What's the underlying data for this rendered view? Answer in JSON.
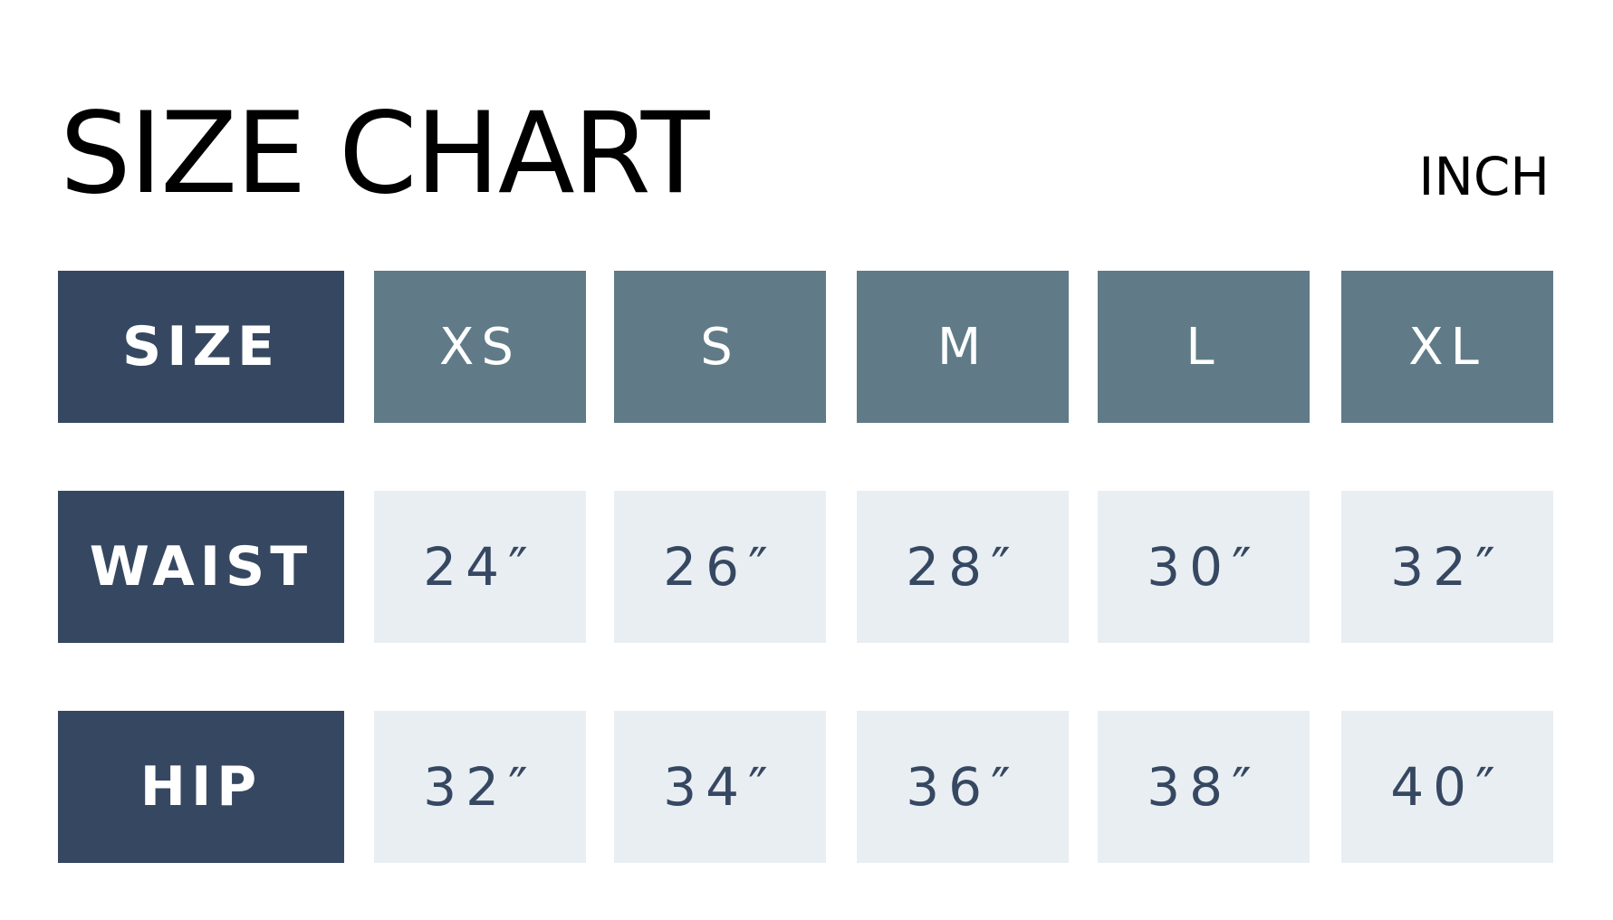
{
  "title": "SIZE CHART",
  "unit": "INCH",
  "colors": {
    "row_header": "#364861",
    "column_header": "#607b87",
    "value_cell": "#e9eef3"
  },
  "table": {
    "header_label": "SIZE",
    "sizes": [
      "XS",
      "S",
      "M",
      "L",
      "XL"
    ],
    "rows": [
      {
        "label": "WAIST",
        "values": [
          "24″",
          "26″",
          "28″",
          "30″",
          "32″"
        ]
      },
      {
        "label": "HIP",
        "values": [
          "32″",
          "34″",
          "36″",
          "38″",
          "40″"
        ]
      }
    ]
  }
}
